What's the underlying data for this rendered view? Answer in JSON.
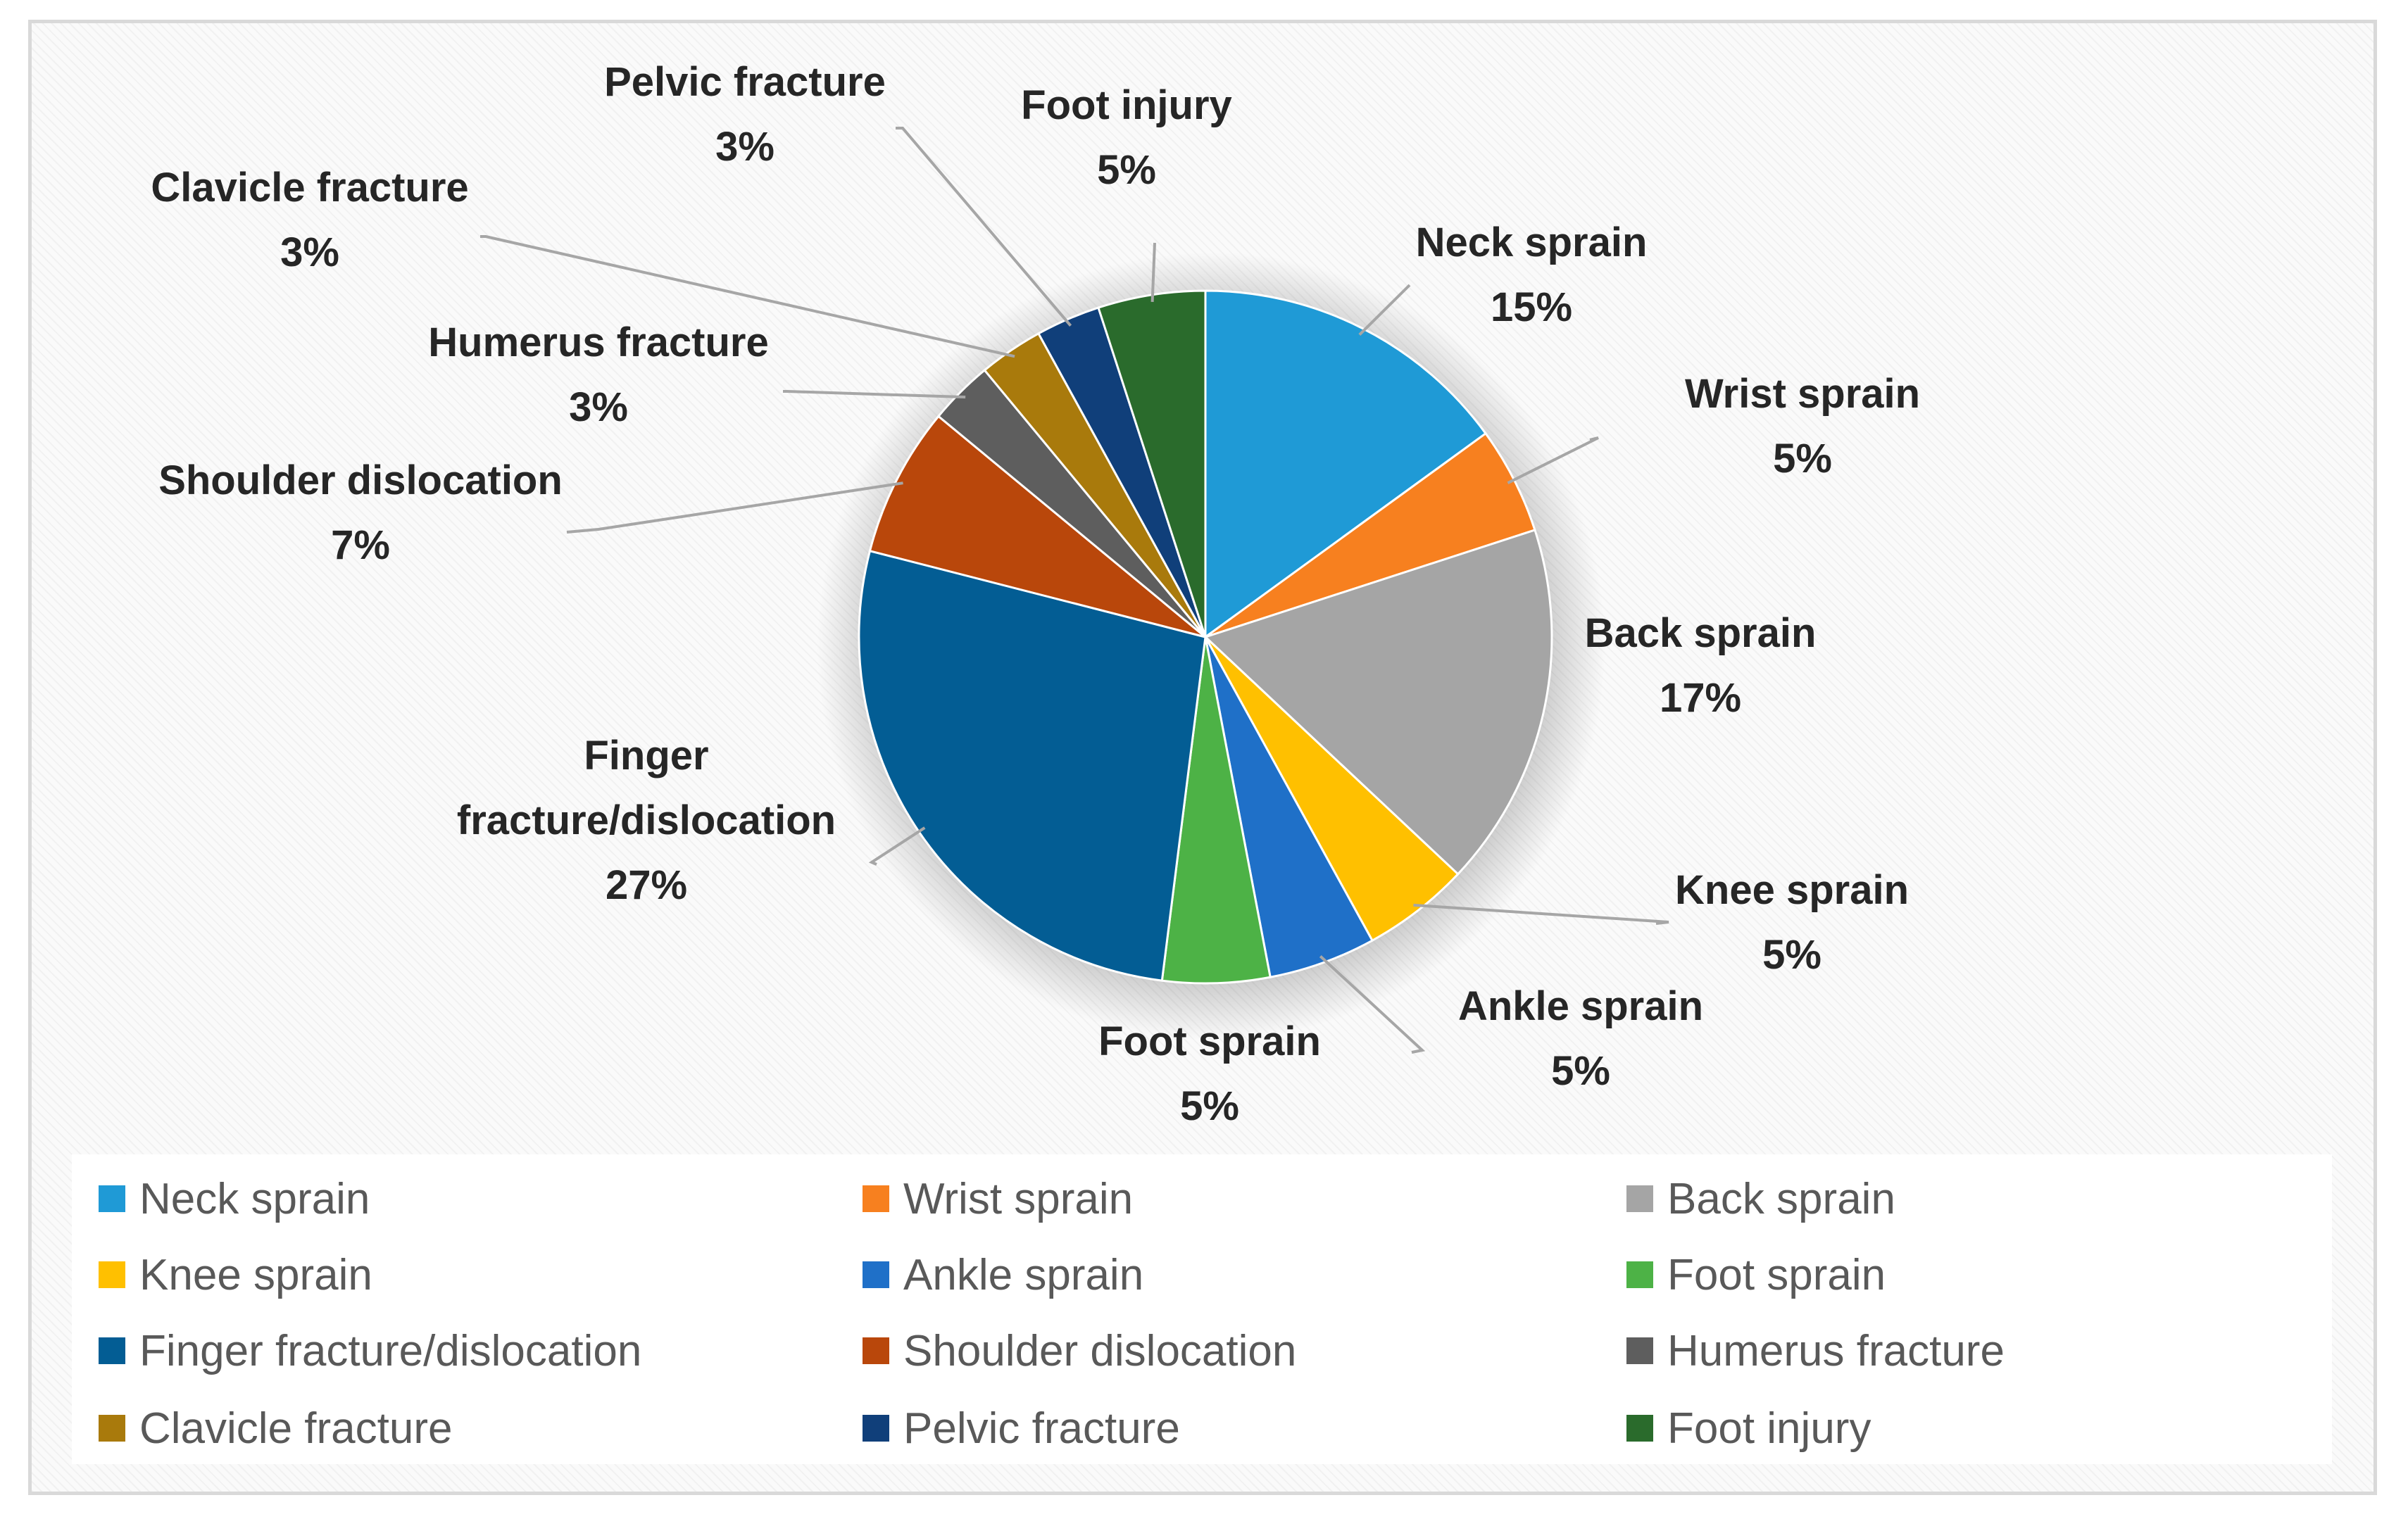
{
  "chart_data": {
    "type": "pie",
    "title": "",
    "unit": "%",
    "start_angle_deg": 0,
    "direction": "clockwise",
    "slices": [
      {
        "name": "Neck sprain",
        "label": [
          "Neck sprain"
        ],
        "pct_label": "15%",
        "value": 15,
        "color": "#1f9ad6"
      },
      {
        "name": "Wrist sprain",
        "label": [
          "Wrist sprain"
        ],
        "pct_label": "5%",
        "value": 5,
        "color": "#f7801f"
      },
      {
        "name": "Back sprain",
        "label": [
          "Back sprain"
        ],
        "pct_label": "17%",
        "value": 17,
        "color": "#a5a5a5"
      },
      {
        "name": "Knee sprain",
        "label": [
          "Knee sprain"
        ],
        "pct_label": "5%",
        "value": 5,
        "color": "#ffc000"
      },
      {
        "name": "Ankle sprain",
        "label": [
          "Ankle sprain"
        ],
        "pct_label": "5%",
        "value": 5,
        "color": "#1f70c8"
      },
      {
        "name": "Foot sprain",
        "label": [
          "Foot sprain"
        ],
        "pct_label": "5%",
        "value": 5,
        "color": "#4db246"
      },
      {
        "name": "Finger fracture/dislocation",
        "label": [
          "Finger",
          "fracture/dislocation"
        ],
        "pct_label": "27%",
        "value": 27,
        "color": "#035d94"
      },
      {
        "name": "Shoulder dislocation",
        "label": [
          "Shoulder dislocation"
        ],
        "pct_label": "7%",
        "value": 7,
        "color": "#b9470b"
      },
      {
        "name": "Humerus fracture",
        "label": [
          "Humerus fracture"
        ],
        "pct_label": "3%",
        "value": 3,
        "color": "#5e5e5e"
      },
      {
        "name": "Clavicle fracture",
        "label": [
          "Clavicle fracture"
        ],
        "pct_label": "3%",
        "value": 3,
        "color": "#a97a0c"
      },
      {
        "name": "Pelvic fracture",
        "label": [
          "Pelvic fracture"
        ],
        "pct_label": "3%",
        "value": 3,
        "color": "#103f7a"
      },
      {
        "name": "Foot injury",
        "label": [
          "Foot injury"
        ],
        "pct_label": "5%",
        "value": 5,
        "color": "#2a6b2c"
      }
    ],
    "legend": {
      "position": "bottom",
      "columns": 3,
      "items": [
        "Neck sprain",
        "Wrist sprain",
        "Back sprain",
        "Knee sprain",
        "Ankle sprain",
        "Foot sprain",
        "Finger fracture/dislocation",
        "Shoulder dislocation",
        "Humerus fracture",
        "Clavicle fracture",
        "Pelvic fracture",
        "Foot injury"
      ]
    }
  }
}
